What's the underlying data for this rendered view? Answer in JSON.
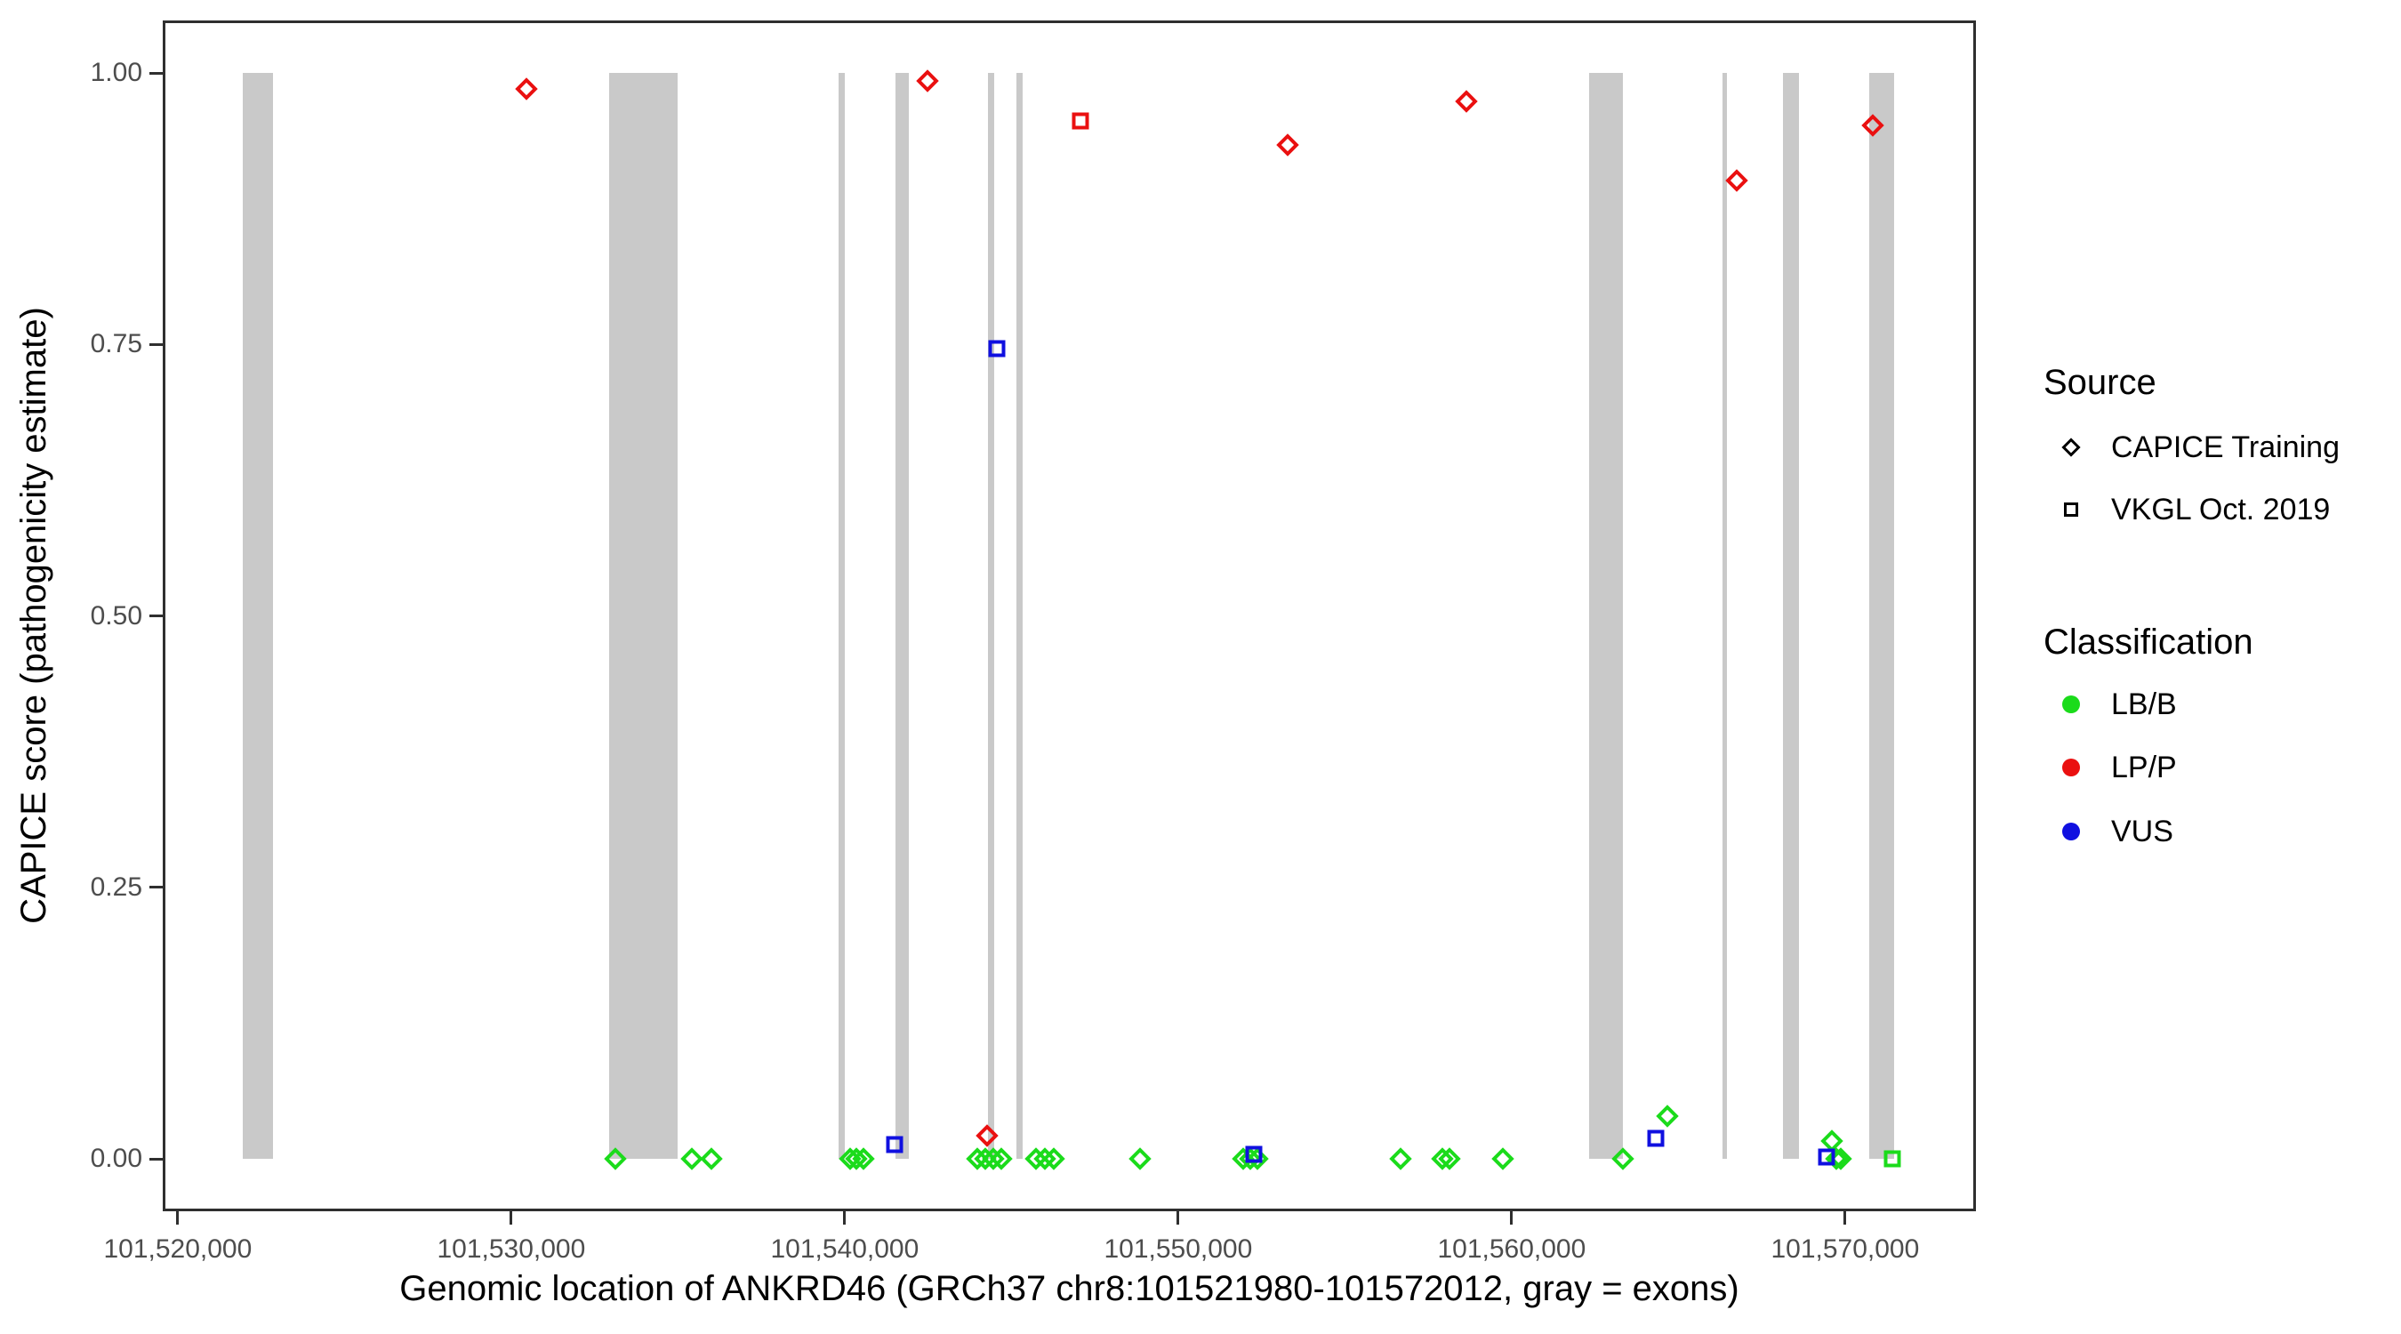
{
  "chart_data": {
    "type": "scatter",
    "xlabel": "Genomic location of ANKRD46 (GRCh37 chr8:101521980-101572012, gray = exons)",
    "ylabel": "CAPICE score (pathogenicity estimate)",
    "x_domain": [
      101519550,
      101573920
    ],
    "y_domain": [
      -0.048,
      1.048
    ],
    "grid": "off",
    "x_ticks": [
      {
        "value": 101520000,
        "label": "101,520,000"
      },
      {
        "value": 101530000,
        "label": "101,530,000"
      },
      {
        "value": 101540000,
        "label": "101,540,000"
      },
      {
        "value": 101550000,
        "label": "101,550,000"
      },
      {
        "value": 101560000,
        "label": "101,560,000"
      },
      {
        "value": 101570000,
        "label": "101,570,000"
      }
    ],
    "y_ticks": [
      {
        "value": 0.0,
        "label": "0.00"
      },
      {
        "value": 0.25,
        "label": "0.25"
      },
      {
        "value": 0.5,
        "label": "0.50"
      },
      {
        "value": 0.75,
        "label": "0.75"
      },
      {
        "value": 1.0,
        "label": "1.00"
      }
    ],
    "exon_color": "#c9c9c9",
    "exons": [
      [
        101521950,
        101522850
      ],
      [
        101532930,
        101534990
      ],
      [
        101539820,
        101540000
      ],
      [
        101541520,
        101541920
      ],
      [
        101544290,
        101544480
      ],
      [
        101545150,
        101545330
      ],
      [
        101562320,
        101563330
      ],
      [
        101566320,
        101566460
      ],
      [
        101568130,
        101568610
      ],
      [
        101570720,
        101571470
      ]
    ],
    "colors": {
      "LB/B": "#1bdb1b",
      "LP/P": "#ea1010",
      "VUS": "#1010e0"
    },
    "series": [
      {
        "name": "CAPICE Training",
        "marker": "diamond",
        "points": [
          {
            "g": 101530450,
            "v": 0.985,
            "cls": "LP/P"
          },
          {
            "g": 101542480,
            "v": 0.993,
            "cls": "LP/P"
          },
          {
            "g": 101553290,
            "v": 0.934,
            "cls": "LP/P"
          },
          {
            "g": 101558650,
            "v": 0.974,
            "cls": "LP/P"
          },
          {
            "g": 101566760,
            "v": 0.901,
            "cls": "LP/P"
          },
          {
            "g": 101570820,
            "v": 0.952,
            "cls": "LP/P"
          },
          {
            "g": 101544270,
            "v": 0.021,
            "cls": "LP/P"
          },
          {
            "g": 101533120,
            "v": 0.0,
            "cls": "LB/B"
          },
          {
            "g": 101535410,
            "v": 0.0,
            "cls": "LB/B"
          },
          {
            "g": 101536000,
            "v": 0.0,
            "cls": "LB/B"
          },
          {
            "g": 101540150,
            "v": 0.0,
            "cls": "LB/B"
          },
          {
            "g": 101540350,
            "v": 0.0,
            "cls": "LB/B"
          },
          {
            "g": 101540550,
            "v": 0.0,
            "cls": "LB/B"
          },
          {
            "g": 101543970,
            "v": 0.0,
            "cls": "LB/B"
          },
          {
            "g": 101544210,
            "v": 0.0,
            "cls": "LB/B"
          },
          {
            "g": 101544450,
            "v": 0.0,
            "cls": "LB/B"
          },
          {
            "g": 101544690,
            "v": 0.0,
            "cls": "LB/B"
          },
          {
            "g": 101545730,
            "v": 0.0,
            "cls": "LB/B"
          },
          {
            "g": 101546000,
            "v": 0.0,
            "cls": "LB/B"
          },
          {
            "g": 101546270,
            "v": 0.0,
            "cls": "LB/B"
          },
          {
            "g": 101548850,
            "v": 0.0,
            "cls": "LB/B"
          },
          {
            "g": 101551950,
            "v": 0.0,
            "cls": "LB/B"
          },
          {
            "g": 101552160,
            "v": 0.0,
            "cls": "LB/B"
          },
          {
            "g": 101552370,
            "v": 0.0,
            "cls": "LB/B"
          },
          {
            "g": 101556670,
            "v": 0.0,
            "cls": "LB/B"
          },
          {
            "g": 101557920,
            "v": 0.0,
            "cls": "LB/B"
          },
          {
            "g": 101558130,
            "v": 0.0,
            "cls": "LB/B"
          },
          {
            "g": 101559730,
            "v": 0.0,
            "cls": "LB/B"
          },
          {
            "g": 101563330,
            "v": 0.0,
            "cls": "LB/B"
          },
          {
            "g": 101564670,
            "v": 0.039,
            "cls": "LB/B"
          },
          {
            "g": 101569600,
            "v": 0.016,
            "cls": "LB/B"
          },
          {
            "g": 101569730,
            "v": 0.0,
            "cls": "LB/B"
          },
          {
            "g": 101569870,
            "v": 0.0,
            "cls": "LB/B"
          }
        ]
      },
      {
        "name": "VKGL Oct. 2019",
        "marker": "square",
        "points": [
          {
            "g": 101547070,
            "v": 0.956,
            "cls": "LP/P"
          },
          {
            "g": 101571410,
            "v": 0.0,
            "cls": "LB/B"
          },
          {
            "g": 101541490,
            "v": 0.013,
            "cls": "VUS"
          },
          {
            "g": 101544560,
            "v": 0.746,
            "cls": "VUS"
          },
          {
            "g": 101552270,
            "v": 0.004,
            "cls": "VUS"
          },
          {
            "g": 101564320,
            "v": 0.019,
            "cls": "VUS"
          },
          {
            "g": 101569440,
            "v": 0.002,
            "cls": "VUS"
          }
        ]
      }
    ]
  },
  "legend": {
    "source": {
      "title": "Source",
      "items": [
        {
          "label": "CAPICE Training",
          "marker": "diamond"
        },
        {
          "label": "VKGL Oct. 2019",
          "marker": "square"
        }
      ]
    },
    "classification": {
      "title": "Classification",
      "items": [
        {
          "label": "LB/B",
          "color": "#1bdb1b"
        },
        {
          "label": "LP/P",
          "color": "#ea1010"
        },
        {
          "label": "VUS",
          "color": "#1010e0"
        }
      ]
    }
  }
}
